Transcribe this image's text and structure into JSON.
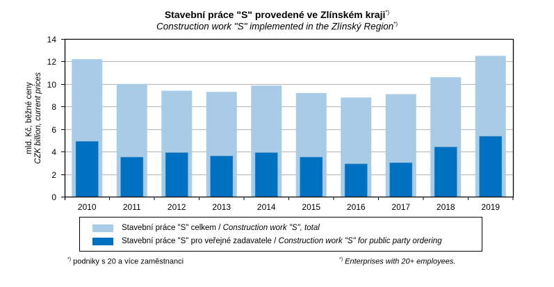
{
  "chart_data": {
    "type": "bar",
    "title": "Stavební práce \"S\" provedené ve Zlínském kraji",
    "title_sup": "*)",
    "subtitle": "Construction work \"S\" implemented in the Zlínský Region",
    "subtitle_sup": "*)",
    "ylabel_cz": "mld. Kč, běžné ceny",
    "ylabel_en": "CZK billion, current prices",
    "xlabel": "",
    "ylim": [
      0,
      14
    ],
    "yticks": [
      "0",
      "2",
      "4",
      "6",
      "8",
      "10",
      "12",
      "14"
    ],
    "grid": true,
    "legend_position": "bottom",
    "categories": [
      "2010",
      "2011",
      "2012",
      "2013",
      "2014",
      "2015",
      "2016",
      "2017",
      "2018",
      "2019"
    ],
    "series": [
      {
        "name_cz": "Stavební práce \"S\" celkem / ",
        "name_en": "Construction work \"S\", total",
        "color": "#a8cce6",
        "values": [
          12.2,
          10.0,
          9.4,
          9.3,
          9.85,
          9.2,
          8.8,
          9.1,
          10.6,
          12.5
        ]
      },
      {
        "name_cz": "Stavební práce \"S\" pro veřejné zadavatele / ",
        "name_en": "Construction work \"S\" for public party ordering",
        "color": "#0070c0",
        "values": [
          4.9,
          3.5,
          3.9,
          3.6,
          3.9,
          3.5,
          2.9,
          3.0,
          4.4,
          5.35
        ]
      }
    ]
  },
  "footnotes": {
    "left_mark": "*)",
    "left": " podniky s 20 a více zaměstnanci",
    "right_mark": "*)",
    "right": " Enterprises with 20+ employees."
  }
}
